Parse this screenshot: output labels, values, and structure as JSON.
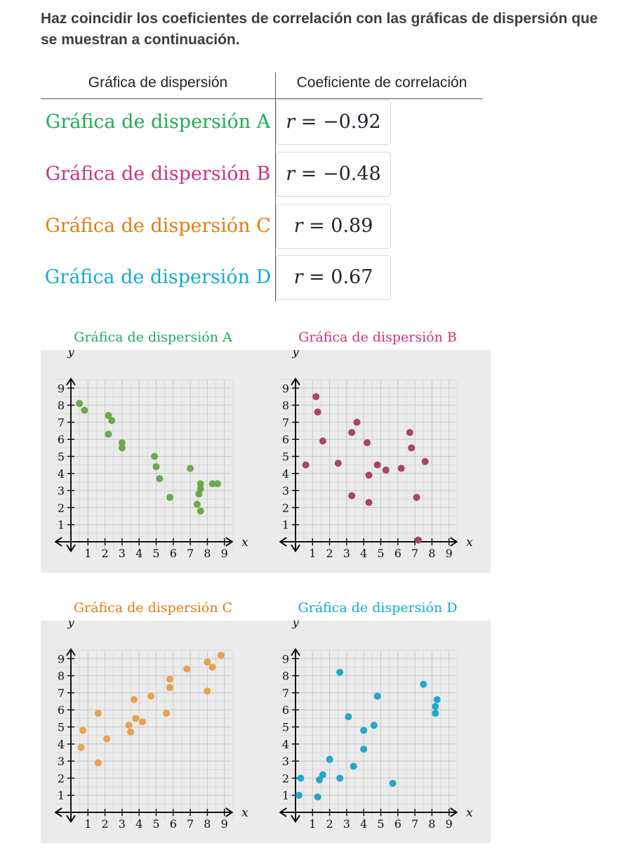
{
  "question": "Haz coincidir los coeficientes de correlación con las gráficas de dispersión que se muestran a continuación.",
  "table": {
    "header_left": "Gráfica de dispersión",
    "header_right": "Coeficiente de correlación",
    "rows": [
      {
        "label": "Gráfica de dispersión A",
        "color": "#1fab54",
        "card_var": "r",
        "card_value": "= −0.92"
      },
      {
        "label": "Gráfica de dispersión B",
        "color": "#ca337c",
        "card_var": "r",
        "card_value": "= −0.48"
      },
      {
        "label": "Gráfica de dispersión C",
        "color": "#e07d10",
        "card_var": "r",
        "card_value": "= 0.89"
      },
      {
        "label": "Gráfica de dispersión D",
        "color": "#11accd",
        "card_var": "r",
        "card_value": "= 0.67"
      }
    ]
  },
  "chart_data": [
    {
      "type": "scatter",
      "title": "Gráfica de dispersión A",
      "title_color": "#1fab54",
      "point_color": "#6aa84f",
      "xlabel": "x",
      "ylabel": "y",
      "xlim": [
        0,
        9
      ],
      "ylim": [
        0,
        9
      ],
      "ticks": [
        "1",
        "2",
        "3",
        "4",
        "5",
        "6",
        "7",
        "8",
        "9"
      ],
      "points": [
        [
          0.5,
          8.1
        ],
        [
          0.8,
          7.7
        ],
        [
          2.2,
          7.4
        ],
        [
          2.4,
          7.1
        ],
        [
          2.2,
          6.3
        ],
        [
          3.0,
          5.8
        ],
        [
          3.0,
          5.5
        ],
        [
          4.9,
          5.0
        ],
        [
          5.0,
          4.4
        ],
        [
          5.2,
          3.7
        ],
        [
          5.8,
          2.6
        ],
        [
          7.0,
          4.3
        ],
        [
          7.6,
          3.4
        ],
        [
          7.6,
          3.1
        ],
        [
          7.5,
          2.8
        ],
        [
          8.3,
          3.4
        ],
        [
          8.6,
          3.4
        ],
        [
          7.4,
          2.2
        ],
        [
          7.6,
          1.8
        ]
      ]
    },
    {
      "type": "scatter",
      "title": "Gráfica de dispersión B",
      "title_color": "#ca337c",
      "point_color": "#aa4465",
      "xlabel": "x",
      "ylabel": "y",
      "xlim": [
        0,
        9
      ],
      "ylim": [
        0,
        9
      ],
      "ticks": [
        "1",
        "2",
        "3",
        "4",
        "5",
        "6",
        "7",
        "8",
        "9"
      ],
      "points": [
        [
          0.6,
          4.5
        ],
        [
          1.2,
          8.5
        ],
        [
          1.3,
          7.6
        ],
        [
          1.6,
          5.9
        ],
        [
          2.5,
          4.6
        ],
        [
          3.3,
          6.4
        ],
        [
          3.6,
          7.0
        ],
        [
          3.3,
          2.7
        ],
        [
          4.2,
          5.8
        ],
        [
          4.3,
          3.9
        ],
        [
          4.3,
          2.3
        ],
        [
          4.8,
          4.5
        ],
        [
          5.3,
          4.2
        ],
        [
          6.2,
          4.3
        ],
        [
          6.7,
          6.4
        ],
        [
          6.8,
          5.5
        ],
        [
          7.1,
          2.6
        ],
        [
          7.6,
          4.7
        ],
        [
          7.2,
          0.1
        ]
      ]
    },
    {
      "type": "scatter",
      "title": "Gráfica de dispersión C",
      "title_color": "#e07d10",
      "point_color": "#e8a150",
      "xlabel": "x",
      "ylabel": "y",
      "xlim": [
        0,
        9
      ],
      "ylim": [
        0,
        9
      ],
      "ticks": [
        "1",
        "2",
        "3",
        "4",
        "5",
        "6",
        "7",
        "8",
        "9"
      ],
      "points": [
        [
          0.7,
          4.8
        ],
        [
          0.6,
          3.8
        ],
        [
          1.6,
          5.8
        ],
        [
          1.6,
          2.9
        ],
        [
          2.1,
          4.3
        ],
        [
          3.4,
          5.1
        ],
        [
          3.5,
          4.7
        ],
        [
          3.7,
          6.6
        ],
        [
          3.8,
          5.5
        ],
        [
          4.2,
          5.3
        ],
        [
          4.7,
          6.8
        ],
        [
          5.6,
          5.8
        ],
        [
          5.8,
          7.8
        ],
        [
          5.8,
          7.3
        ],
        [
          6.8,
          8.4
        ],
        [
          8.0,
          8.8
        ],
        [
          8.3,
          8.5
        ],
        [
          8.8,
          9.2
        ],
        [
          8.0,
          7.1
        ]
      ]
    },
    {
      "type": "scatter",
      "title": "Gráfica de dispersión D",
      "title_color": "#11accd",
      "point_color": "#22a7c8",
      "xlabel": "x",
      "ylabel": "y",
      "xlim": [
        0,
        9
      ],
      "ylim": [
        0,
        9
      ],
      "ticks": [
        "1",
        "2",
        "3",
        "4",
        "5",
        "6",
        "7",
        "8",
        "9"
      ],
      "points": [
        [
          0.3,
          2.0
        ],
        [
          0.2,
          1.0
        ],
        [
          1.3,
          0.9
        ],
        [
          1.4,
          1.9
        ],
        [
          1.6,
          2.2
        ],
        [
          2.0,
          3.1
        ],
        [
          2.6,
          8.2
        ],
        [
          2.6,
          2.0
        ],
        [
          3.1,
          5.6
        ],
        [
          3.4,
          2.7
        ],
        [
          4.0,
          4.8
        ],
        [
          4.0,
          3.7
        ],
        [
          4.6,
          5.1
        ],
        [
          4.8,
          6.8
        ],
        [
          5.7,
          1.7
        ],
        [
          7.5,
          7.5
        ],
        [
          8.3,
          6.6
        ],
        [
          8.2,
          6.2
        ],
        [
          8.2,
          5.8
        ]
      ]
    }
  ]
}
